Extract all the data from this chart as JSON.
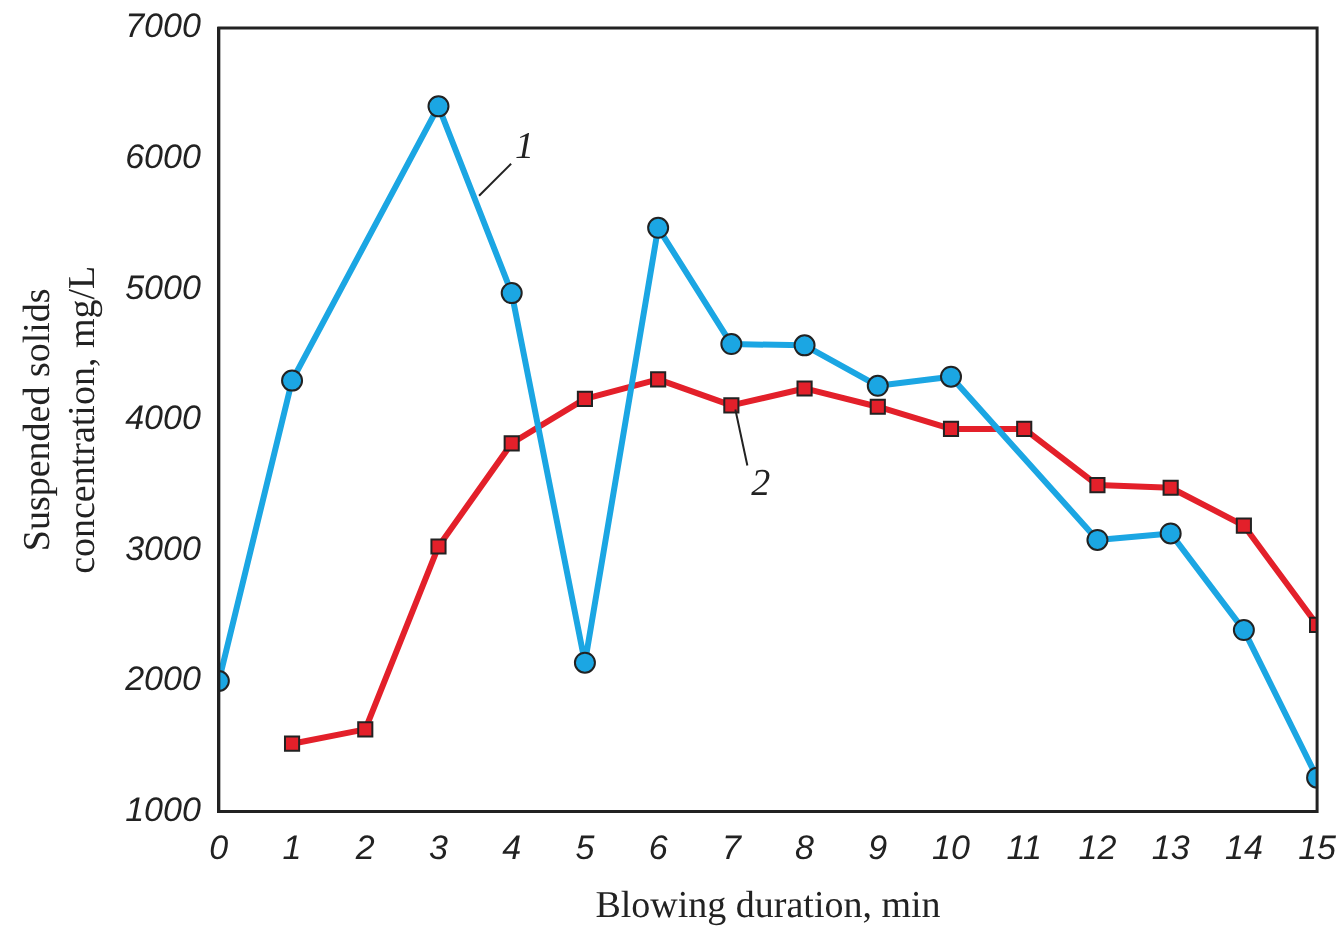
{
  "chart_data": {
    "type": "line",
    "xlabel": "Blowing duration, min",
    "ylabel": "Suspended solids\nconcentration, mg/L",
    "x": [
      0,
      1,
      2,
      3,
      4,
      5,
      6,
      7,
      8,
      9,
      10,
      11,
      12,
      13,
      14,
      15
    ],
    "xlim": [
      0,
      15
    ],
    "xticks": [
      0,
      1,
      2,
      3,
      4,
      5,
      6,
      7,
      8,
      9,
      10,
      11,
      12,
      13,
      14,
      15
    ],
    "ylim": [
      1000,
      7000
    ],
    "yticks": [
      1000,
      2000,
      3000,
      4000,
      5000,
      6000,
      7000
    ],
    "grid": false,
    "line_style": "solid",
    "series": [
      {
        "name": "1",
        "color": "#1ba6e3",
        "marker": "circle",
        "values": [
          2000,
          4300,
          null,
          6400,
          4970,
          2140,
          5470,
          4580,
          4570,
          4260,
          4330,
          null,
          3080,
          3130,
          2390,
          1260
        ]
      },
      {
        "name": "2",
        "color": "#e3202a",
        "marker": "square",
        "values": [
          null,
          1520,
          1630,
          3030,
          3820,
          4160,
          4310,
          4110,
          4240,
          4100,
          3930,
          3930,
          3500,
          3480,
          3190,
          2430
        ]
      }
    ]
  }
}
